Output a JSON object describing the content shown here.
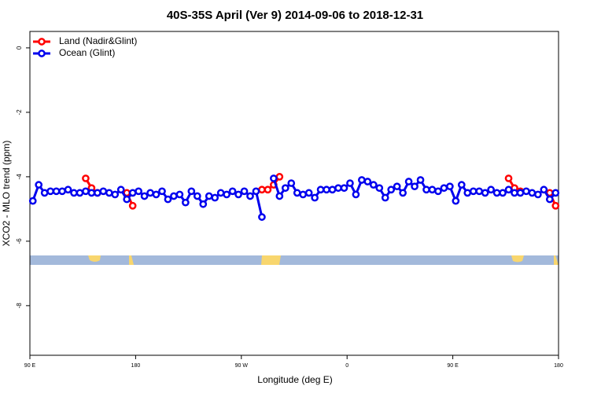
{
  "chart_data": {
    "type": "line",
    "title": "40S-35S April (Ver 9)   2014-09-06 to 2018-12-31",
    "x_label": "Longitude (deg E)",
    "y_label": "XCO2 - MLO trend (ppm)",
    "xlim": [
      90,
      540
    ],
    "xticks": [
      {
        "value": 90,
        "label": "90 E"
      },
      {
        "value": 180,
        "label": "180"
      },
      {
        "value": 270,
        "label": "90 W"
      },
      {
        "value": 360,
        "label": "0"
      },
      {
        "value": 450,
        "label": "90 E"
      },
      {
        "value": 540,
        "label": "180"
      }
    ],
    "ylim": [
      -9.54,
      0.51
    ],
    "yticks": [
      0,
      -2,
      -4,
      -6,
      -8
    ],
    "legend": "top-left",
    "series": [
      {
        "name": "Land (Nadir&Glint)",
        "color": "#ff0000",
        "x": [
          137.5,
          142.5,
          147.5,
          null,
          172.5,
          177.5,
          null,
          287.5,
          292.5,
          297.5,
          302.5,
          null,
          497.5,
          502.5,
          507.5,
          null,
          532.5,
          537.5
        ],
        "values": [
          -4.05,
          -4.35,
          -4.5,
          null,
          -4.5,
          -4.9,
          null,
          -4.4,
          -4.4,
          -4.25,
          -4.0,
          null,
          -4.05,
          -4.35,
          -4.45,
          null,
          -4.5,
          -4.9
        ]
      },
      {
        "name": "Ocean (Glint)",
        "color": "#0000ee",
        "x": [
          92.5,
          97.5,
          102.5,
          107.5,
          112.5,
          117.5,
          122.5,
          127.5,
          132.5,
          137.5,
          142.5,
          147.5,
          152.5,
          157.5,
          162.5,
          167.5,
          172.5,
          177.5,
          182.5,
          187.5,
          192.5,
          197.5,
          202.5,
          207.5,
          212.5,
          217.5,
          222.5,
          227.5,
          232.5,
          237.5,
          242.5,
          247.5,
          252.5,
          257.5,
          262.5,
          267.5,
          272.5,
          277.5,
          282.5,
          287.5,
          292.5,
          297.5,
          302.5,
          307.5,
          312.5,
          317.5,
          322.5,
          327.5,
          332.5,
          337.5,
          342.5,
          347.5,
          352.5,
          357.5,
          362.5,
          367.5,
          372.5,
          377.5,
          382.5,
          387.5,
          392.5,
          397.5,
          402.5,
          407.5,
          412.5,
          417.5,
          422.5,
          427.5,
          432.5,
          437.5,
          442.5,
          447.5,
          452.5,
          457.5,
          462.5,
          467.5,
          472.5,
          477.5,
          482.5,
          487.5,
          492.5,
          497.5,
          502.5,
          507.5,
          512.5,
          517.5,
          522.5,
          527.5,
          532.5,
          537.5
        ],
        "values": [
          -4.75,
          -4.25,
          -4.5,
          -4.45,
          -4.45,
          -4.45,
          -4.4,
          -4.5,
          -4.5,
          -4.45,
          -4.5,
          -4.5,
          -4.45,
          -4.5,
          -4.55,
          -4.4,
          -4.7,
          -4.5,
          -4.45,
          -4.6,
          -4.5,
          -4.55,
          -4.45,
          -4.7,
          -4.6,
          -4.55,
          -4.8,
          -4.45,
          -4.6,
          -4.85,
          -4.6,
          -4.65,
          -4.5,
          -4.55,
          -4.45,
          -4.55,
          -4.45,
          -4.6,
          -4.45,
          -5.25,
          null,
          -4.05,
          -4.6,
          -4.35,
          -4.2,
          -4.5,
          -4.55,
          -4.5,
          -4.65,
          -4.4,
          -4.4,
          -4.4,
          -4.35,
          -4.35,
          -4.2,
          -4.55,
          -4.1,
          -4.15,
          -4.25,
          -4.35,
          -4.65,
          -4.4,
          -4.3,
          -4.5,
          -4.15,
          -4.3,
          -4.1,
          -4.4,
          -4.4,
          -4.45,
          -4.35,
          -4.3,
          -4.75,
          -4.25,
          -4.5,
          -4.45,
          -4.45,
          -4.5,
          -4.4,
          -4.5,
          -4.5,
          -4.4,
          -4.5,
          -4.5,
          -4.45,
          -4.5,
          -4.55,
          -4.4,
          -4.7,
          -4.5
        ]
      }
    ]
  }
}
